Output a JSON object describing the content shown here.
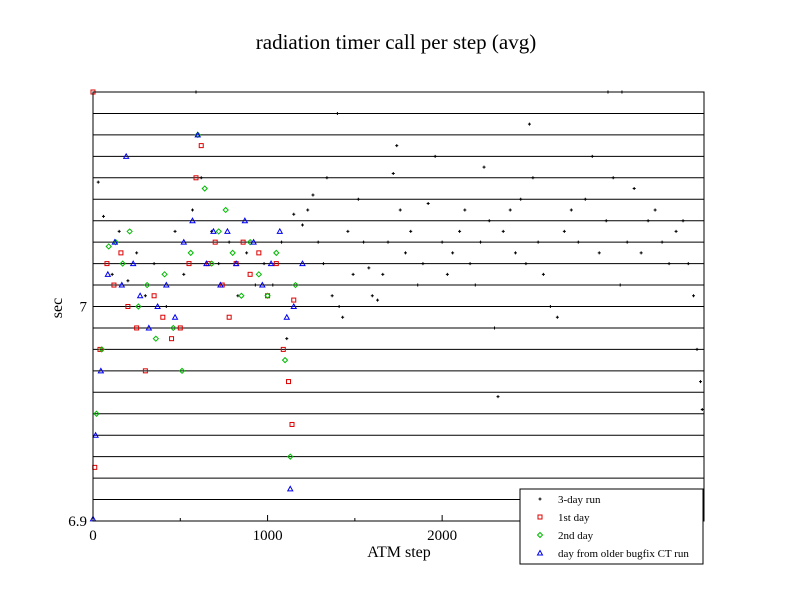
{
  "chart_data": {
    "type": "scatter",
    "title": "radiation timer call per step (avg)",
    "xlabel": "ATM step",
    "ylabel": "sec",
    "xlim": [
      0,
      3500
    ],
    "ylim": [
      6.9,
      7.1
    ],
    "xticks": [
      0,
      1000,
      2000
    ],
    "xtick_labels": [
      "0",
      "1000",
      "2000"
    ],
    "yticks": [
      6.9,
      7.0
    ],
    "ytick_labels": [
      "6.9",
      "7"
    ],
    "grid": "horizontal",
    "legend_position": "bottom-right",
    "series": [
      {
        "name": "3-day run",
        "color": "#000000",
        "marker": "plus",
        "points": [
          [
            30,
            7.058
          ],
          [
            60,
            7.042
          ],
          [
            110,
            7.015
          ],
          [
            150,
            7.035
          ],
          [
            200,
            7.012
          ],
          [
            250,
            7.025
          ],
          [
            300,
            7.005
          ],
          [
            350,
            7.02
          ],
          [
            420,
            7.0
          ],
          [
            470,
            7.035
          ],
          [
            520,
            7.015
          ],
          [
            570,
            7.045
          ],
          [
            590,
            7.1
          ],
          [
            620,
            7.06
          ],
          [
            680,
            7.035
          ],
          [
            720,
            7.02
          ],
          [
            780,
            7.03
          ],
          [
            830,
            7.005
          ],
          [
            880,
            7.025
          ],
          [
            930,
            7.01
          ],
          [
            980,
            7.02
          ],
          [
            1030,
            7.01
          ],
          [
            1080,
            7.03
          ],
          [
            1110,
            6.985
          ],
          [
            1150,
            7.043
          ],
          [
            1200,
            7.038
          ],
          [
            1230,
            7.045
          ],
          [
            1260,
            7.052
          ],
          [
            1290,
            7.03
          ],
          [
            1320,
            7.02
          ],
          [
            1340,
            7.06
          ],
          [
            1370,
            7.005
          ],
          [
            1400,
            7.09
          ],
          [
            1410,
            7.0
          ],
          [
            1430,
            6.995
          ],
          [
            1460,
            7.035
          ],
          [
            1490,
            7.015
          ],
          [
            1520,
            7.05
          ],
          [
            1550,
            7.03
          ],
          [
            1580,
            7.018
          ],
          [
            1600,
            7.005
          ],
          [
            1630,
            7.003
          ],
          [
            1660,
            7.015
          ],
          [
            1690,
            7.03
          ],
          [
            1720,
            7.062
          ],
          [
            1740,
            7.075
          ],
          [
            1760,
            7.045
          ],
          [
            1790,
            7.025
          ],
          [
            1820,
            7.035
          ],
          [
            1860,
            7.01
          ],
          [
            1890,
            7.02
          ],
          [
            1920,
            7.048
          ],
          [
            1960,
            7.07
          ],
          [
            2000,
            7.03
          ],
          [
            2030,
            7.015
          ],
          [
            2060,
            7.025
          ],
          [
            2100,
            7.035
          ],
          [
            2130,
            7.045
          ],
          [
            2160,
            7.02
          ],
          [
            2190,
            7.01
          ],
          [
            2220,
            7.03
          ],
          [
            2240,
            7.065
          ],
          [
            2270,
            7.04
          ],
          [
            2300,
            6.99
          ],
          [
            2320,
            6.958
          ],
          [
            2350,
            7.035
          ],
          [
            2390,
            7.045
          ],
          [
            2420,
            7.025
          ],
          [
            2450,
            7.05
          ],
          [
            2480,
            7.02
          ],
          [
            2520,
            7.06
          ],
          [
            2550,
            7.03
          ],
          [
            2580,
            7.015
          ],
          [
            2620,
            7.0
          ],
          [
            2660,
            6.995
          ],
          [
            2700,
            7.035
          ],
          [
            2740,
            7.045
          ],
          [
            2780,
            7.03
          ],
          [
            2820,
            7.05
          ],
          [
            2860,
            7.07
          ],
          [
            2900,
            7.025
          ],
          [
            2940,
            7.04
          ],
          [
            2980,
            7.06
          ],
          [
            3020,
            7.01
          ],
          [
            3060,
            7.03
          ],
          [
            3100,
            7.055
          ],
          [
            3140,
            7.025
          ],
          [
            3180,
            7.04
          ],
          [
            3220,
            7.045
          ],
          [
            3260,
            7.03
          ],
          [
            3300,
            7.02
          ],
          [
            3340,
            7.035
          ],
          [
            3380,
            7.04
          ],
          [
            3410,
            7.02
          ],
          [
            3440,
            7.005
          ],
          [
            3460,
            6.98
          ],
          [
            3480,
            6.965
          ],
          [
            3490,
            6.952
          ],
          [
            2950,
            7.1
          ],
          [
            3030,
            7.1
          ],
          [
            2500,
            7.085
          ]
        ]
      },
      {
        "name": "1st day",
        "color": "#dd0000",
        "marker": "square",
        "points": [
          [
            0,
            7.1
          ],
          [
            10,
            6.925
          ],
          [
            40,
            6.98
          ],
          [
            80,
            7.02
          ],
          [
            120,
            7.01
          ],
          [
            160,
            7.025
          ],
          [
            200,
            7.0
          ],
          [
            250,
            6.99
          ],
          [
            300,
            6.97
          ],
          [
            350,
            7.005
          ],
          [
            400,
            6.995
          ],
          [
            450,
            6.985
          ],
          [
            500,
            6.99
          ],
          [
            550,
            7.02
          ],
          [
            590,
            7.06
          ],
          [
            620,
            7.075
          ],
          [
            660,
            7.02
          ],
          [
            700,
            7.03
          ],
          [
            740,
            7.01
          ],
          [
            780,
            6.995
          ],
          [
            820,
            7.02
          ],
          [
            860,
            7.03
          ],
          [
            900,
            7.015
          ],
          [
            950,
            7.025
          ],
          [
            1000,
            7.005
          ],
          [
            1050,
            7.02
          ],
          [
            1090,
            6.98
          ],
          [
            1120,
            6.965
          ],
          [
            1140,
            6.945
          ],
          [
            1150,
            7.003
          ]
        ]
      },
      {
        "name": "2nd day",
        "color": "#00bb00",
        "marker": "diamond",
        "points": [
          [
            20,
            6.95
          ],
          [
            50,
            6.98
          ],
          [
            90,
            7.028
          ],
          [
            130,
            7.03
          ],
          [
            170,
            7.02
          ],
          [
            210,
            7.035
          ],
          [
            260,
            7.0
          ],
          [
            310,
            7.01
          ],
          [
            360,
            6.985
          ],
          [
            410,
            7.015
          ],
          [
            460,
            6.99
          ],
          [
            510,
            6.97
          ],
          [
            560,
            7.025
          ],
          [
            600,
            7.08
          ],
          [
            640,
            7.055
          ],
          [
            680,
            7.02
          ],
          [
            720,
            7.035
          ],
          [
            760,
            7.045
          ],
          [
            800,
            7.025
          ],
          [
            850,
            7.005
          ],
          [
            900,
            7.03
          ],
          [
            950,
            7.015
          ],
          [
            1000,
            7.005
          ],
          [
            1050,
            7.025
          ],
          [
            1100,
            6.975
          ],
          [
            1130,
            6.93
          ],
          [
            1160,
            7.01
          ]
        ]
      },
      {
        "name": "day from older bugfix CT run",
        "color": "#0000ee",
        "marker": "triangle",
        "points": [
          [
            0,
            6.901
          ],
          [
            15,
            6.94
          ],
          [
            45,
            6.97
          ],
          [
            85,
            7.015
          ],
          [
            125,
            7.03
          ],
          [
            165,
            7.01
          ],
          [
            190,
            7.07
          ],
          [
            230,
            7.02
          ],
          [
            270,
            7.005
          ],
          [
            320,
            6.99
          ],
          [
            370,
            7.0
          ],
          [
            420,
            7.01
          ],
          [
            470,
            6.995
          ],
          [
            520,
            7.03
          ],
          [
            570,
            7.04
          ],
          [
            600,
            7.08
          ],
          [
            650,
            7.02
          ],
          [
            690,
            7.035
          ],
          [
            730,
            7.01
          ],
          [
            770,
            7.035
          ],
          [
            820,
            7.02
          ],
          [
            870,
            7.04
          ],
          [
            920,
            7.03
          ],
          [
            970,
            7.01
          ],
          [
            1020,
            7.02
          ],
          [
            1070,
            7.035
          ],
          [
            1110,
            6.995
          ],
          [
            1130,
            6.915
          ],
          [
            1150,
            7.0
          ],
          [
            1200,
            7.02
          ]
        ]
      }
    ]
  }
}
